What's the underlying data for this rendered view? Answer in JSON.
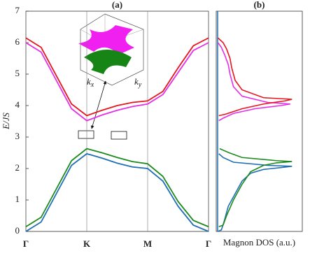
{
  "chart_data": [
    {
      "type": "line",
      "title": "(a)",
      "ylabel": "E/JS",
      "x": [
        0,
        0.25,
        0.5,
        0.75,
        1,
        1.25,
        1.5,
        1.75,
        2,
        2.25,
        2.5,
        2.75,
        3
      ],
      "xlim": [
        0,
        3
      ],
      "xticks": [
        {
          "value": 0,
          "label": "Γ"
        },
        {
          "value": 1,
          "label": "K"
        },
        {
          "value": 2,
          "label": "M"
        },
        {
          "value": 3,
          "label": "Γ"
        }
      ],
      "ylim": [
        0,
        7
      ],
      "yticks": [
        0,
        1,
        2,
        3,
        4,
        5,
        6,
        7
      ],
      "grid": true,
      "series": [
        {
          "color": "#e8141e",
          "values": [
            6.15,
            5.85,
            4.95,
            4.05,
            3.68,
            3.85,
            4.0,
            4.1,
            4.15,
            4.45,
            5.2,
            5.9,
            6.15
          ]
        },
        {
          "color": "#e62ee6",
          "values": [
            6.0,
            5.7,
            4.8,
            3.9,
            3.52,
            3.7,
            3.85,
            3.97,
            4.05,
            4.35,
            5.05,
            5.75,
            6.0
          ]
        },
        {
          "color": "#1c8a1c",
          "values": [
            0.15,
            0.45,
            1.35,
            2.25,
            2.63,
            2.5,
            2.35,
            2.22,
            2.15,
            1.75,
            0.95,
            0.35,
            0.15
          ]
        },
        {
          "color": "#1f6fb4",
          "values": [
            0,
            0.3,
            1.2,
            2.1,
            2.47,
            2.33,
            2.17,
            2.05,
            2.0,
            1.6,
            0.8,
            0.2,
            0
          ]
        }
      ],
      "annotations": [
        {
          "base": "k",
          "sub": "x"
        },
        {
          "base": "k",
          "sub": "y"
        }
      ]
    },
    {
      "type": "dos",
      "title": "(b)",
      "xlabel": "Magnon DOS (a.u.)",
      "xlim": [
        0,
        1
      ],
      "ylim": [
        0,
        7
      ],
      "series": [
        {
          "color": "#1f6fb4",
          "x": [
            0.02,
            0.06,
            0.09,
            0.14,
            0.22,
            0.3,
            0.4,
            0.55,
            0.75,
            0.88,
            0.6,
            0.2,
            0.08,
            0.03
          ],
          "values": [
            0,
            0.05,
            0.3,
            0.8,
            1.2,
            1.6,
            1.85,
            1.97,
            2.03,
            2.07,
            2.1,
            2.2,
            2.35,
            2.47
          ]
        },
        {
          "color": "#1c8a1c",
          "x": [
            0.03,
            0.08,
            0.12,
            0.2,
            0.3,
            0.4,
            0.55,
            0.7,
            0.88,
            0.7,
            0.3,
            0.15,
            0.04
          ],
          "values": [
            0.15,
            0.2,
            0.5,
            1.0,
            1.5,
            1.9,
            2.1,
            2.18,
            2.22,
            2.25,
            2.35,
            2.5,
            2.63
          ]
        },
        {
          "color": "#e62ee6",
          "x": [
            0.03,
            0.08,
            0.2,
            0.45,
            0.75,
            0.86,
            0.6,
            0.3,
            0.2,
            0.16,
            0.14,
            0.1,
            0.06,
            0.02
          ],
          "values": [
            3.52,
            3.6,
            3.75,
            3.9,
            4.0,
            4.05,
            4.1,
            4.3,
            4.6,
            5.0,
            5.3,
            5.6,
            5.85,
            6.0
          ]
        },
        {
          "color": "#e8141e",
          "x": [
            0.03,
            0.1,
            0.3,
            0.55,
            0.8,
            0.88,
            0.55,
            0.3,
            0.22,
            0.18,
            0.16,
            0.12,
            0.08,
            0.02
          ],
          "values": [
            3.68,
            3.72,
            3.9,
            4.05,
            4.15,
            4.2,
            4.25,
            4.5,
            4.8,
            5.2,
            5.5,
            5.8,
            6.0,
            6.15
          ]
        }
      ]
    }
  ]
}
